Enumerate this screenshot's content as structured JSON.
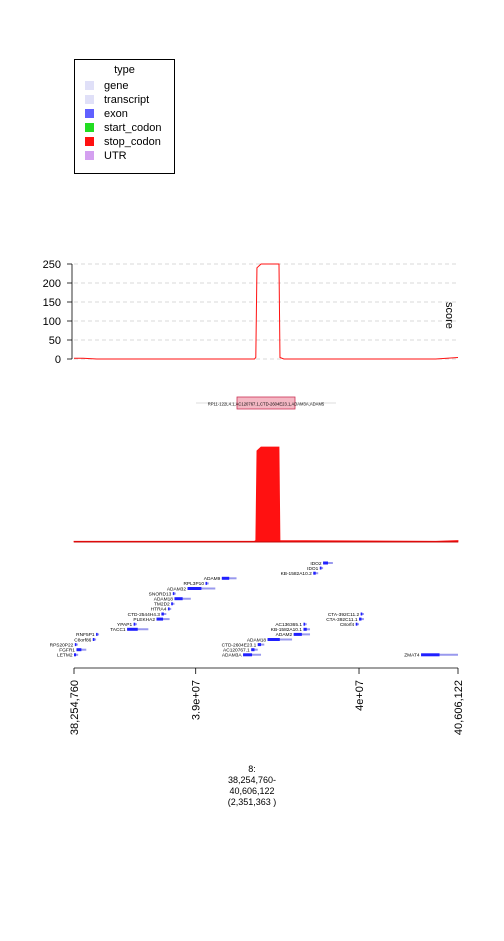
{
  "legend": {
    "title": "type",
    "items": [
      {
        "label": "gene",
        "color": "#e0e0f8"
      },
      {
        "label": "transcript",
        "color": "#e0e0f8"
      },
      {
        "label": "exon",
        "color": "#6060ff"
      },
      {
        "label": "start_codon",
        "color": "#22dd22"
      },
      {
        "label": "stop_codon",
        "color": "#ff1111"
      },
      {
        "label": "UTR",
        "color": "#d4a0f0"
      }
    ]
  },
  "chart_data": [
    {
      "type": "line",
      "ylabel": "score",
      "ylim": [
        0,
        250
      ],
      "yticks": [
        "0",
        "50",
        "100",
        "150",
        "200",
        "250"
      ],
      "xlim": [
        38254760,
        40606122
      ],
      "grid": "horizontal dashed",
      "series_color": "#ff1111",
      "x": [
        38254760,
        38310000,
        38395000,
        39360000,
        39368000,
        39375000,
        39400000,
        39510000,
        39516000,
        39540000,
        40470000,
        40606122
      ],
      "y": [
        2,
        2,
        0,
        0,
        4,
        240,
        250,
        250,
        4,
        0,
        0,
        4
      ]
    },
    {
      "type": "area",
      "xlim": [
        38254760,
        40606122
      ],
      "series_color": "#ff1111",
      "x": [
        38254760,
        39360000,
        39368000,
        39375000,
        39400000,
        39510000,
        39516000,
        40470000,
        40606122
      ],
      "y": [
        2,
        2,
        4,
        240,
        250,
        250,
        4,
        2,
        4
      ]
    }
  ],
  "ideogram": {
    "label": "RP11-122L4.1,AC120767.1,CTD-2604E23.1,ADAM3A,ADAM5",
    "highlight_color": "#f4b8c4"
  },
  "genes": [
    {
      "name": "IDO2",
      "label": "IDO2",
      "row": 0,
      "start": 39780000,
      "end": 39840000
    },
    {
      "name": "IDO1",
      "label": "IDO1",
      "row": 1,
      "start": 39760000,
      "end": 39780000
    },
    {
      "name": "KB-1582A10.2",
      "label": "KB-1582A10.2",
      "row": 2,
      "start": 39720000,
      "end": 39750000
    },
    {
      "name": "ADAM9",
      "label": "ADAM9",
      "row": 3,
      "start": 39160000,
      "end": 39250000
    },
    {
      "name": "RPL3P10",
      "label": "RPL3P10",
      "row": 4,
      "start": 39060000,
      "end": 39080000
    },
    {
      "name": "ADAM32",
      "label": "ADAM32",
      "row": 5,
      "start": 38950000,
      "end": 39120000
    },
    {
      "name": "SNORD13",
      "label": "SNORD13",
      "row": 6,
      "start": 38860000,
      "end": 38870000
    },
    {
      "name": "ADAM18",
      "label": "ADAM18",
      "row": 7,
      "start": 38870000,
      "end": 38970000
    },
    {
      "name": "TM2D2",
      "label": "TM2D2",
      "row": 8,
      "start": 38850000,
      "end": 38870000
    },
    {
      "name": "HTRA4",
      "label": "HTRA4",
      "row": 9,
      "start": 38830000,
      "end": 38850000
    },
    {
      "name": "CTD-2544H4.3",
      "label": "CTD-2544H4.3",
      "row": 10,
      "start": 38790000,
      "end": 38820000
    },
    {
      "name": "PLEKHA2",
      "label": "PLEKHA2",
      "row": 11,
      "start": 38760000,
      "end": 38840000
    },
    {
      "name": "YPAP1",
      "label": "YPAP1",
      "row": 12,
      "start": 38620000,
      "end": 38640000
    },
    {
      "name": "TACC1",
      "label": "TACC1",
      "row": 13,
      "start": 38580000,
      "end": 38710000
    },
    {
      "name": "RNF5P1",
      "label": "RNF5P1",
      "row": 14,
      "start": 38390000,
      "end": 38400000
    },
    {
      "name": "C8orf86",
      "label": "C8orf86",
      "row": 15,
      "start": 38370000,
      "end": 38390000
    },
    {
      "name": "RPS20P22",
      "label": "RPS20P22",
      "row": 16,
      "start": 38260000,
      "end": 38270000
    },
    {
      "name": "FGFR1",
      "label": "FGFR1",
      "row": 17,
      "start": 38270000,
      "end": 38330000
    },
    {
      "name": "LETM2",
      "label": "LETM2",
      "row": 18,
      "start": 38254760,
      "end": 38280000
    },
    {
      "name": "CTA-392C11.2",
      "label": "CTA-392C11.2",
      "row": 10,
      "start": 40010000,
      "end": 40030000
    },
    {
      "name": "CTA-392C11.1",
      "label": "CTA-392C11.1",
      "row": 11,
      "start": 40000000,
      "end": 40030000
    },
    {
      "name": "C8orf4",
      "label": "C8orf4",
      "row": 12,
      "start": 39980000,
      "end": 40000000
    },
    {
      "name": "AC136365.1",
      "label": "AC136365.1",
      "row": 12,
      "start": 39660000,
      "end": 39680000
    },
    {
      "name": "KB-1582A10.1",
      "label": "KB-1582A10.1",
      "row": 13,
      "start": 39660000,
      "end": 39700000
    },
    {
      "name": "ADAM2",
      "label": "ADAM2",
      "row": 14,
      "start": 39600000,
      "end": 39700000
    },
    {
      "name": "ADAM18",
      "label": "ADAM18",
      "row": 15,
      "start": 39440000,
      "end": 39590000
    },
    {
      "name": "CTD-2604E23.1",
      "label": "CTD-2604E23.1",
      "row": 16,
      "start": 39380000,
      "end": 39420000
    },
    {
      "name": "AC120767.1",
      "label": "AC120767.1",
      "row": 17,
      "start": 39340000,
      "end": 39380000
    },
    {
      "name": "ADAM3A",
      "label": "ADAM3A",
      "row": 18,
      "start": 39290000,
      "end": 39400000
    },
    {
      "name": "ZMAT4",
      "label": "ZMAT4",
      "row": 18,
      "start": 40380000,
      "end": 40606122
    }
  ],
  "xaxis": {
    "ticks": [
      {
        "value": 38254760,
        "label": "38,254,760"
      },
      {
        "value": 39000000,
        "label": "3.9e+07"
      },
      {
        "value": 40000000,
        "label": "4e+07"
      },
      {
        "value": 40606122,
        "label": "40,606,122"
      }
    ]
  },
  "location": {
    "chrom": "8:",
    "range_start": "38,254,760-",
    "range_end": "40,606,122",
    "width": "(2,351,363 )"
  }
}
